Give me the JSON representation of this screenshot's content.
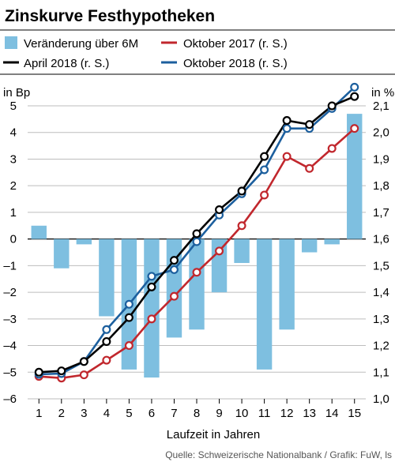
{
  "chart_data": {
    "type": "bar+line",
    "title": "Zinskurve Festhypotheken",
    "xlabel": "Laufzeit in Jahren",
    "ylabel_left": "in Bp",
    "ylabel_right": "in %",
    "source": "Quelle: Schweizerische Nationalbank / Grafik: FuW, ls",
    "x": [
      1,
      2,
      3,
      4,
      5,
      6,
      7,
      8,
      9,
      10,
      11,
      12,
      13,
      14,
      15
    ],
    "ylim_left": [
      -6,
      5
    ],
    "yticks_left": [
      "5",
      "4",
      "3",
      "2",
      "1",
      "0",
      "–1",
      "–2",
      "–3",
      "–4",
      "–5",
      "–6"
    ],
    "ylim_right": [
      1.0,
      2.1
    ],
    "yticks_right": [
      "2,1",
      "2,0",
      "1,9",
      "1,8",
      "1,7",
      "1,6",
      "1,5",
      "1,4",
      "1,3",
      "1,2",
      "1,1",
      "1,0"
    ],
    "grid": true,
    "bars": {
      "name": "Veränderung über 6M",
      "axis": "left",
      "color": "#7ebfe0",
      "values": [
        0.5,
        -1.1,
        -0.2,
        -2.9,
        -4.9,
        -5.2,
        -3.7,
        -3.4,
        -2.0,
        -0.9,
        -4.9,
        -3.4,
        -0.5,
        -0.2,
        4.7
      ]
    },
    "series": [
      {
        "name": "Oktober 2017 (r. S.)",
        "axis": "right",
        "color": "#c1272d",
        "values": [
          1.084,
          1.078,
          1.09,
          1.145,
          1.2,
          1.3,
          1.385,
          1.475,
          1.555,
          1.65,
          1.765,
          1.91,
          1.865,
          1.94,
          2.015
        ]
      },
      {
        "name": "April 2018 (r. S.)",
        "axis": "right",
        "color": "#000000",
        "values": [
          1.1,
          1.105,
          1.14,
          1.215,
          1.305,
          1.42,
          1.52,
          1.62,
          1.71,
          1.78,
          1.91,
          2.045,
          2.03,
          2.1,
          2.135
        ]
      },
      {
        "name": "Oktober 2018 (r. S.)",
        "axis": "right",
        "color": "#1c5f9e",
        "values": [
          1.092,
          1.095,
          1.14,
          1.26,
          1.355,
          1.46,
          1.485,
          1.59,
          1.69,
          1.77,
          1.86,
          2.015,
          2.015,
          2.09,
          2.17
        ]
      }
    ],
    "legend": {
      "placement": "top",
      "order": [
        "Veränderung über 6M",
        "Oktober 2017 (r. S.)",
        "April 2018 (r. S.)",
        "Oktober 2018 (r. S.)"
      ]
    }
  }
}
